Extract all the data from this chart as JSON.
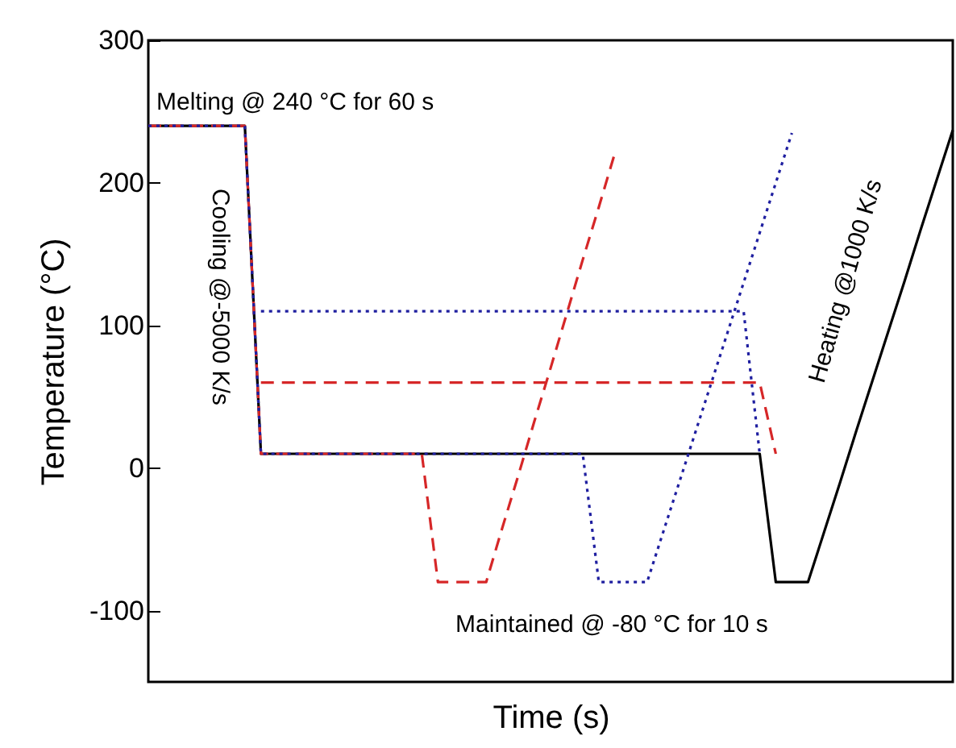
{
  "chart_data": {
    "type": "line",
    "xlabel": "Time (s)",
    "ylabel": "Temperature (°C)",
    "categories": [
      null,
      null,
      null,
      null,
      null,
      null,
      null,
      null,
      null,
      null,
      null,
      null,
      null,
      null,
      null,
      null,
      null,
      null,
      null,
      null,
      null,
      null,
      null,
      null,
      null,
      null,
      null,
      null,
      null,
      null,
      null,
      null,
      null,
      null,
      null,
      null,
      null,
      null,
      null,
      null,
      null,
      null,
      null,
      null,
      null,
      null,
      null,
      null,
      null,
      null,
      null
    ],
    "ylim": [
      -150,
      300
    ],
    "yticks": [
      -100,
      0,
      100,
      200,
      300
    ],
    "tick_labels": "y",
    "grid": false,
    "legend": false,
    "series": [
      {
        "color": "#000000",
        "line_style": "solid",
        "values": [
          240,
          240,
          240,
          240,
          240,
          240,
          240,
          10,
          10,
          10,
          10,
          10,
          10,
          10,
          10,
          10,
          10,
          10,
          10,
          10,
          10,
          10,
          10,
          10,
          10,
          10,
          10,
          10,
          10,
          10,
          10,
          10,
          10,
          10,
          10,
          10,
          10,
          10,
          10,
          -80,
          -80,
          -80,
          -45,
          -10,
          26,
          61,
          96,
          131,
          167,
          202,
          237
        ]
      },
      {
        "color": "#d62728",
        "line_style": "dashed",
        "values": [
          240,
          240,
          240,
          240,
          240,
          240,
          240,
          10,
          10,
          10,
          10,
          10,
          10,
          10,
          10,
          10,
          10,
          10,
          -80,
          -80,
          -80,
          -80,
          -42,
          -5,
          33,
          70,
          108,
          146,
          183,
          221,
          null,
          null,
          null,
          null,
          null,
          null,
          null,
          null,
          null,
          null,
          null,
          null,
          null,
          null,
          null,
          null,
          null,
          null,
          null,
          null,
          null
        ]
      },
      {
        "color": "#d62728",
        "line_style": "dashed",
        "values": [
          null,
          null,
          null,
          null,
          null,
          null,
          null,
          60,
          60,
          60,
          60,
          60,
          60,
          60,
          60,
          60,
          60,
          60,
          60,
          60,
          60,
          60,
          60,
          60,
          60,
          60,
          60,
          60,
          60,
          60,
          60,
          60,
          60,
          60,
          60,
          60,
          60,
          60,
          60,
          10,
          null,
          null,
          null,
          null,
          null,
          null,
          null,
          null,
          null,
          null,
          null
        ]
      },
      {
        "color": "#1f1fa0",
        "line_style": "dotted",
        "values": [
          240,
          240,
          240,
          240,
          240,
          240,
          240,
          10,
          10,
          10,
          10,
          10,
          10,
          10,
          10,
          10,
          10,
          10,
          10,
          10,
          10,
          10,
          10,
          10,
          10,
          10,
          10,
          10,
          -80,
          -80,
          -80,
          -80,
          -45,
          -10,
          25,
          60,
          95,
          130,
          165,
          200,
          235,
          null,
          null,
          null,
          null,
          null,
          null,
          null,
          null,
          null,
          null
        ]
      },
      {
        "color": "#1f1fa0",
        "line_style": "dotted",
        "values": [
          null,
          null,
          null,
          null,
          null,
          null,
          null,
          110,
          110,
          110,
          110,
          110,
          110,
          110,
          110,
          110,
          110,
          110,
          110,
          110,
          110,
          110,
          110,
          110,
          110,
          110,
          110,
          110,
          110,
          110,
          110,
          110,
          110,
          110,
          110,
          110,
          110,
          110,
          10,
          null,
          null,
          null,
          null,
          null,
          null,
          null,
          null,
          null,
          null,
          null,
          null
        ]
      }
    ],
    "annotations": [
      "Melting @ 240 °C for 60 s",
      "Cooling @-5000 K/s",
      "Heating @1000 K/s",
      "Maintained @ -80 °C for 10 s"
    ]
  }
}
